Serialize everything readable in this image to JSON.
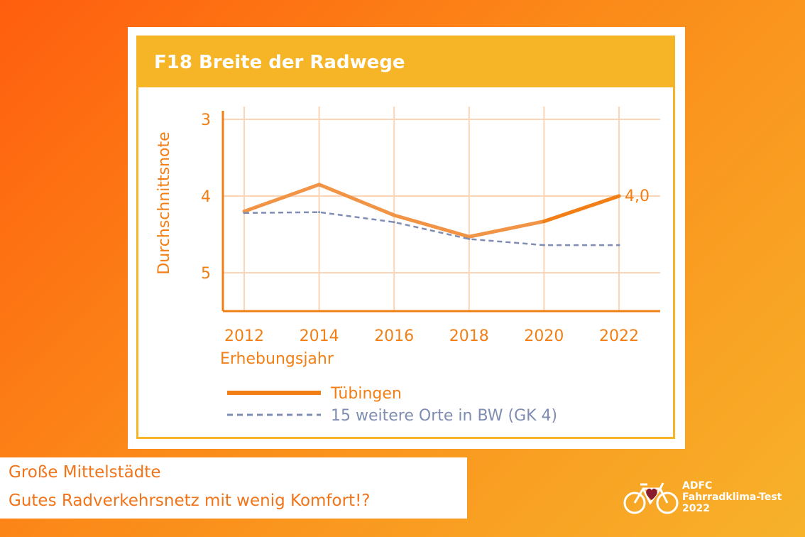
{
  "header": {
    "title": "F18 Breite der Radwege"
  },
  "chart_data": {
    "type": "line",
    "title": "F18 Breite der Radwege",
    "xlabel": "Erhebungsjahr",
    "ylabel": "Durchschnittsnote",
    "x": [
      2012,
      2014,
      2016,
      2018,
      2020,
      2022
    ],
    "xticks": [
      "2012",
      "2014",
      "2016",
      "2018",
      "2020",
      "2022"
    ],
    "yticks": [
      "3",
      "4",
      "5"
    ],
    "ylim": [
      3,
      5.5
    ],
    "y_inverted": true,
    "grid": true,
    "legend_position": "bottom",
    "series": [
      {
        "name": "Tübingen",
        "values": [
          4.2,
          3.85,
          4.25,
          4.53,
          4.33,
          4.0
        ],
        "color": "#f29446",
        "style": "solid"
      },
      {
        "name": "15 weitere Orte in BW (GK 4)",
        "values": [
          4.22,
          4.21,
          4.34,
          4.56,
          4.64,
          4.64
        ],
        "color": "#7f8db3",
        "style": "dashed"
      }
    ],
    "annotations": [
      {
        "text": "4,0",
        "series": 0,
        "x": 2022
      }
    ]
  },
  "caption": {
    "line1": "Große Mittelstädte",
    "line2": "Gutes Radverkehrsnetz mit wenig Komfort!?"
  },
  "logo": {
    "line1": "ADFC",
    "line2": "Fahrradklima-Test",
    "line3": "2022"
  },
  "colors": {
    "header": "#f6b427",
    "accent": "#f27f16",
    "grid": "#fbd5b6",
    "series_main": "#f29446",
    "series_compare": "#7f8db3"
  }
}
